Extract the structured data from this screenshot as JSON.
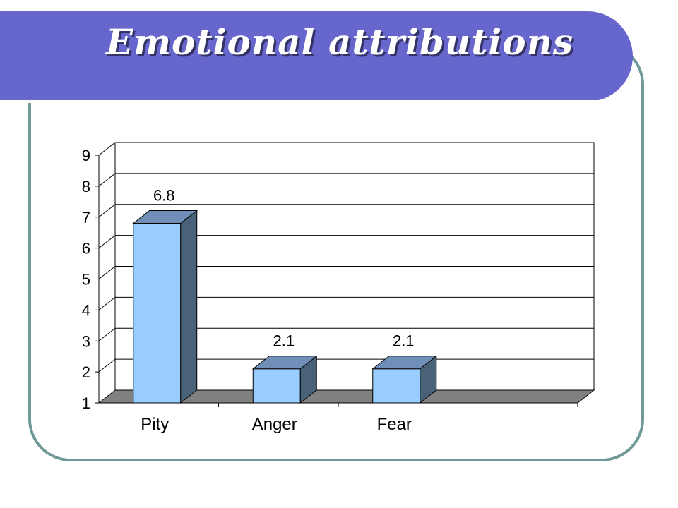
{
  "page": {
    "title": "Emotional attributions"
  },
  "colors": {
    "title_bar": "#6666cc",
    "frame_border": "#6f9a98",
    "bar_front": "#99ccff",
    "bar_side": "#4a6278",
    "bar_top": "#6f8fb8",
    "floor": "#808080"
  },
  "chart_data": {
    "type": "bar",
    "title": "",
    "xlabel": "",
    "ylabel": "",
    "categories": [
      "Pity",
      "Anger",
      "Fear",
      ""
    ],
    "values": [
      6.8,
      2.1,
      2.1,
      null
    ],
    "value_labels": [
      "6.8",
      "2.1",
      "2.1",
      ""
    ],
    "ylim": [
      1,
      9
    ],
    "yticks": [
      "1",
      "2",
      "3",
      "4",
      "5",
      "6",
      "7",
      "8",
      "9"
    ],
    "grid": true,
    "legend": "none",
    "style": "3d"
  }
}
